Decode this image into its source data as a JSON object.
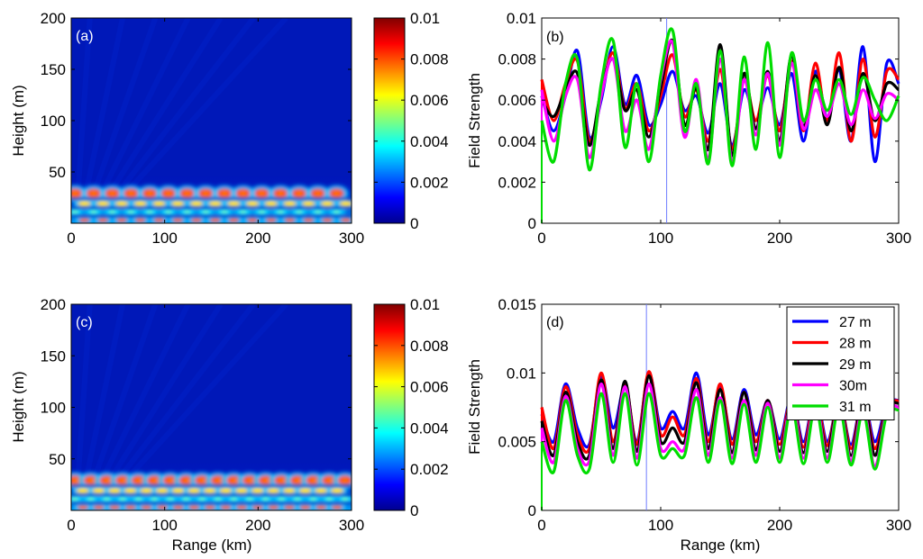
{
  "chart_data": [
    {
      "id": "a",
      "type": "heatmap",
      "panel_label": "(a)",
      "xlabel": "",
      "ylabel": "Height (m)",
      "xlim": [
        0,
        300
      ],
      "ylim": [
        0,
        200
      ],
      "xticks": [
        "0",
        "100",
        "200",
        "300"
      ],
      "yticks": [
        "50",
        "100",
        "150",
        "200"
      ],
      "colorbar": {
        "range": [
          0,
          0.01
        ],
        "ticks": [
          "0",
          "0.002",
          "0.004",
          "0.006",
          "0.008",
          "0.01"
        ]
      },
      "duct_height_m": 40,
      "hotspot_spacing_km": 20
    },
    {
      "id": "b",
      "type": "line",
      "panel_label": "(b)",
      "xlabel": "",
      "ylabel": "Field Strength",
      "xlim": [
        0,
        300
      ],
      "ylim": [
        0,
        0.01
      ],
      "xticks": [
        "0",
        "100",
        "200",
        "300"
      ],
      "yticks": [
        "0",
        "0.002",
        "0.004",
        "0.006",
        "0.008",
        "0.01"
      ],
      "marker_x": 105,
      "x": [
        0,
        10,
        20,
        30,
        40,
        50,
        60,
        70,
        80,
        90,
        100,
        110,
        120,
        130,
        140,
        150,
        160,
        170,
        180,
        190,
        200,
        210,
        220,
        230,
        240,
        250,
        260,
        270,
        280,
        290,
        300
      ],
      "series": [
        {
          "name": "27 m",
          "color": "#0000ff",
          "values": [
            0.0062,
            0.0045,
            0.0062,
            0.0084,
            0.0042,
            0.006,
            0.0086,
            0.0058,
            0.0072,
            0.0048,
            0.0058,
            0.0074,
            0.0055,
            0.0062,
            0.0044,
            0.0068,
            0.0038,
            0.0065,
            0.005,
            0.0066,
            0.0048,
            0.0073,
            0.004,
            0.0074,
            0.0052,
            0.0075,
            0.004,
            0.0086,
            0.003,
            0.0078,
            0.0068
          ]
        },
        {
          "name": "28 m",
          "color": "#ff0000",
          "values": [
            0.007,
            0.005,
            0.0068,
            0.0079,
            0.004,
            0.0063,
            0.0083,
            0.0056,
            0.0068,
            0.0045,
            0.0062,
            0.0082,
            0.0052,
            0.0065,
            0.004,
            0.0075,
            0.0036,
            0.007,
            0.005,
            0.0072,
            0.0045,
            0.0079,
            0.0045,
            0.0078,
            0.005,
            0.0083,
            0.004,
            0.008,
            0.0042,
            0.0074,
            0.007
          ]
        },
        {
          "name": "29 m",
          "color": "#000000",
          "values": [
            0.006,
            0.0052,
            0.0065,
            0.0073,
            0.0038,
            0.0065,
            0.008,
            0.0055,
            0.0065,
            0.0042,
            0.0066,
            0.0089,
            0.0048,
            0.0066,
            0.0036,
            0.0087,
            0.0033,
            0.0073,
            0.0046,
            0.0074,
            0.004,
            0.0082,
            0.0047,
            0.0072,
            0.0048,
            0.0076,
            0.0045,
            0.0073,
            0.005,
            0.0068,
            0.0065
          ]
        },
        {
          "name": "30m",
          "color": "#ff00ff",
          "values": [
            0.0065,
            0.004,
            0.0062,
            0.007,
            0.0032,
            0.0062,
            0.008,
            0.0045,
            0.006,
            0.0036,
            0.007,
            0.0088,
            0.0042,
            0.007,
            0.0031,
            0.008,
            0.003,
            0.007,
            0.0043,
            0.0073,
            0.0038,
            0.0078,
            0.0046,
            0.0065,
            0.0052,
            0.0068,
            0.0048,
            0.0065,
            0.0051,
            0.0063,
            0.006
          ]
        },
        {
          "name": "31 m",
          "color": "#00dd00",
          "values": [
            0.005,
            0.003,
            0.0068,
            0.008,
            0.0026,
            0.0068,
            0.0089,
            0.0037,
            0.0068,
            0.003,
            0.0072,
            0.0094,
            0.0045,
            0.0068,
            0.0029,
            0.0084,
            0.0028,
            0.0081,
            0.0036,
            0.0088,
            0.0032,
            0.0083,
            0.005,
            0.007,
            0.0055,
            0.007,
            0.0053,
            0.0071,
            0.006,
            0.005,
            0.0062
          ]
        }
      ]
    },
    {
      "id": "c",
      "type": "heatmap",
      "panel_label": "(c)",
      "xlabel": "Range (km)",
      "ylabel": "Height (m)",
      "xlim": [
        0,
        300
      ],
      "ylim": [
        0,
        200
      ],
      "xticks": [
        "0",
        "100",
        "200",
        "300"
      ],
      "yticks": [
        "50",
        "100",
        "150",
        "200"
      ],
      "colorbar": {
        "range": [
          0,
          0.01
        ],
        "ticks": [
          "0",
          "0.002",
          "0.004",
          "0.006",
          "0.008",
          "0.01"
        ]
      },
      "duct_height_m": 40,
      "hotspot_spacing_km": 17
    },
    {
      "id": "d",
      "type": "line",
      "panel_label": "(d)",
      "xlabel": "Range (km)",
      "ylabel": "Field Strength",
      "xlim": [
        0,
        300
      ],
      "ylim": [
        0,
        0.015
      ],
      "xticks": [
        "0",
        "100",
        "200",
        "300"
      ],
      "yticks": [
        "0",
        "0.005",
        "0.01",
        "0.015"
      ],
      "marker_x": 88,
      "legend_position": "top-right",
      "x": [
        0,
        10,
        20,
        30,
        40,
        50,
        60,
        70,
        80,
        90,
        100,
        110,
        120,
        130,
        140,
        150,
        160,
        170,
        180,
        190,
        200,
        210,
        220,
        230,
        240,
        250,
        260,
        270,
        280,
        290,
        300
      ],
      "series": [
        {
          "name": "27 m",
          "color": "#0000ff",
          "values": [
            0.007,
            0.005,
            0.0092,
            0.006,
            0.0048,
            0.0098,
            0.006,
            0.009,
            0.005,
            0.01,
            0.006,
            0.0072,
            0.006,
            0.01,
            0.0055,
            0.009,
            0.0052,
            0.0088,
            0.0055,
            0.008,
            0.0052,
            0.0083,
            0.005,
            0.0085,
            0.005,
            0.0081,
            0.0048,
            0.0083,
            0.005,
            0.0078,
            0.008
          ]
        },
        {
          "name": "28 m",
          "color": "#ff0000",
          "values": [
            0.0075,
            0.0045,
            0.009,
            0.0055,
            0.0045,
            0.01,
            0.005,
            0.0092,
            0.0048,
            0.0101,
            0.0055,
            0.0068,
            0.0055,
            0.0096,
            0.005,
            0.0092,
            0.0048,
            0.0086,
            0.005,
            0.008,
            0.0048,
            0.0082,
            0.0046,
            0.0084,
            0.0047,
            0.0082,
            0.0045,
            0.0082,
            0.0045,
            0.0076,
            0.008
          ]
        },
        {
          "name": "29 m",
          "color": "#000000",
          "values": [
            0.0065,
            0.004,
            0.0086,
            0.005,
            0.004,
            0.0095,
            0.0045,
            0.0094,
            0.0043,
            0.0098,
            0.005,
            0.006,
            0.005,
            0.0093,
            0.0045,
            0.0088,
            0.0042,
            0.0086,
            0.0044,
            0.008,
            0.0043,
            0.008,
            0.0042,
            0.008,
            0.0043,
            0.0081,
            0.004,
            0.0081,
            0.004,
            0.0075,
            0.0078
          ]
        },
        {
          "name": "30m",
          "color": "#ff00ff",
          "values": [
            0.006,
            0.0035,
            0.0083,
            0.0045,
            0.0036,
            0.0092,
            0.004,
            0.009,
            0.0038,
            0.0092,
            0.0045,
            0.005,
            0.0045,
            0.0088,
            0.004,
            0.0082,
            0.0038,
            0.008,
            0.004,
            0.0078,
            0.0038,
            0.008,
            0.0038,
            0.008,
            0.0038,
            0.0078,
            0.0036,
            0.0076,
            0.0032,
            0.0073,
            0.0075
          ]
        },
        {
          "name": "31 m",
          "color": "#00dd00",
          "values": [
            0.005,
            0.0028,
            0.008,
            0.004,
            0.003,
            0.0085,
            0.0035,
            0.0085,
            0.0033,
            0.0085,
            0.004,
            0.0045,
            0.004,
            0.0082,
            0.0035,
            0.008,
            0.0034,
            0.0077,
            0.0035,
            0.0075,
            0.0035,
            0.0076,
            0.0034,
            0.0076,
            0.0035,
            0.0076,
            0.0033,
            0.0072,
            0.003,
            0.007,
            0.0073
          ]
        }
      ]
    }
  ]
}
